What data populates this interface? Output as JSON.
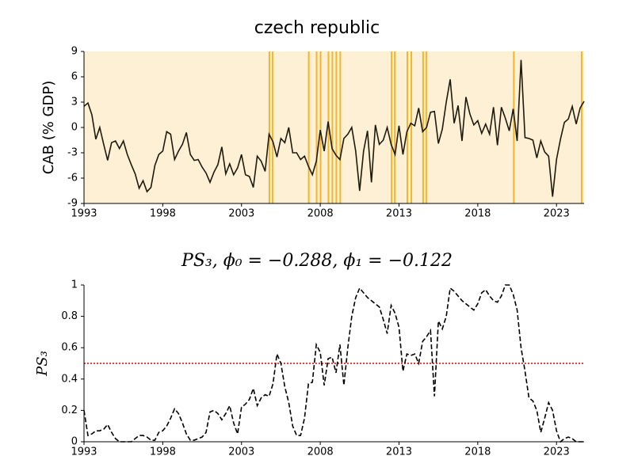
{
  "chart_data": [
    {
      "type": "line",
      "title": "czech republic",
      "ylabel": "CAB (% GDP)",
      "xlim": [
        1993,
        2024.75
      ],
      "xticks": [
        1993,
        1998,
        2003,
        2008,
        2013,
        2018,
        2023
      ],
      "ylim": [
        -9,
        9
      ],
      "yticks": [
        -9,
        -6,
        -3,
        0,
        3,
        6,
        9
      ],
      "background": "#fdf0d5",
      "vlines_color": "#f5b529",
      "vlines": [
        2004.77,
        2004.97,
        2007.27,
        2007.77,
        2008.02,
        2008.52,
        2008.77,
        2009.02,
        2009.27,
        2012.53,
        2012.73,
        2013.53,
        2013.78,
        2014.53,
        2014.73,
        2020.29,
        2024.6
      ],
      "x": [
        1993,
        1993.25,
        1993.5,
        1993.75,
        1994,
        1994.25,
        1994.5,
        1994.75,
        1995,
        1995.25,
        1995.5,
        1995.75,
        1996,
        1996.25,
        1996.5,
        1996.75,
        1997,
        1997.25,
        1997.5,
        1997.75,
        1998,
        1998.25,
        1998.5,
        1998.75,
        1999,
        1999.25,
        1999.5,
        1999.75,
        2000,
        2000.25,
        2000.5,
        2000.75,
        2001,
        2001.25,
        2001.5,
        2001.75,
        2002,
        2002.25,
        2002.5,
        2002.75,
        2003,
        2003.25,
        2003.5,
        2003.75,
        2004,
        2004.25,
        2004.5,
        2004.75,
        2005,
        2005.25,
        2005.5,
        2005.75,
        2006,
        2006.25,
        2006.5,
        2006.75,
        2007,
        2007.25,
        2007.5,
        2007.75,
        2008,
        2008.25,
        2008.5,
        2008.75,
        2009,
        2009.25,
        2009.5,
        2009.75,
        2010,
        2010.25,
        2010.5,
        2010.75,
        2011,
        2011.25,
        2011.5,
        2011.75,
        2012,
        2012.25,
        2012.5,
        2012.75,
        2013,
        2013.25,
        2013.5,
        2013.75,
        2014,
        2014.25,
        2014.5,
        2014.75,
        2015,
        2015.25,
        2015.5,
        2015.75,
        2016,
        2016.25,
        2016.5,
        2016.75,
        2017,
        2017.25,
        2017.5,
        2017.75,
        2018,
        2018.25,
        2018.5,
        2018.75,
        2019,
        2019.25,
        2019.5,
        2019.75,
        2020,
        2020.25,
        2020.5,
        2020.75,
        2021,
        2021.25,
        2021.5,
        2021.75,
        2022,
        2022.25,
        2022.5,
        2022.75,
        2023,
        2023.25,
        2023.5,
        2023.75,
        2024,
        2024.25,
        2024.5,
        2024.75
      ],
      "series": [
        {
          "color": "#1e1a0c",
          "dash": "solid",
          "values": [
            2.5,
            2.9,
            1.5,
            -1.4,
            0,
            -2,
            -3.9,
            -1.8,
            -1.6,
            -2.5,
            -1.6,
            -3.2,
            -4.4,
            -5.5,
            -7.2,
            -6.3,
            -7.6,
            -7.1,
            -4.5,
            -3.2,
            -2.8,
            -0.5,
            -0.8,
            -3.8,
            -2.8,
            -2,
            -0.6,
            -3.2,
            -3.9,
            -3.8,
            -4.7,
            -5.4,
            -6.5,
            -5.3,
            -4.4,
            -2.3,
            -5.5,
            -4.3,
            -5.6,
            -4.8,
            -3.2,
            -5.6,
            -5.8,
            -7.1,
            -3.4,
            -4,
            -5.2,
            -0.8,
            -1.7,
            -3.5,
            -1.3,
            -1.8,
            0,
            -3,
            -3,
            -3.8,
            -3.4,
            -4.6,
            -5.6,
            -4,
            -0.3,
            -2.8,
            0.7,
            -2.5,
            -3.3,
            -3.8,
            -1.3,
            -0.8,
            0,
            -2.8,
            -7.5,
            -2.8,
            -0.4,
            -6.5,
            0.3,
            -2,
            -1.5,
            0,
            -2,
            -3.2,
            0.2,
            -3.2,
            -0.5,
            0.5,
            0.2,
            2.3,
            -0.5,
            0,
            1.8,
            1.9,
            -1.9,
            -0.2,
            3,
            5.7,
            0.5,
            2.6,
            -1.6,
            3.6,
            1.6,
            0.3,
            0.8,
            -0.7,
            0.4,
            -0.8,
            2.4,
            -2.1,
            2.4,
            1.1,
            -0.4,
            2.2,
            -1.6,
            8,
            -1.2,
            -1.3,
            -1.5,
            -3.6,
            -1.6,
            -2.9,
            -3.4,
            -8.2,
            -3.8,
            -1.4,
            0.6,
            1,
            2.5,
            0.4,
            2.3,
            3.1
          ]
        }
      ]
    },
    {
      "type": "line",
      "title": "PS₃, ϕ₀ = −0.288, ϕ₁ = −0.122",
      "ylabel": "PS₃",
      "xlim": [
        1993,
        2024.75
      ],
      "xticks": [
        1993,
        1998,
        2003,
        2008,
        2013,
        2018,
        2023
      ],
      "ylim": [
        0,
        1
      ],
      "yticks": [
        0,
        0.2,
        0.4,
        0.6,
        0.8,
        1
      ],
      "threshold": 0.5,
      "threshold_color": "#e00000",
      "x": [
        1993,
        1993.25,
        1993.5,
        1993.75,
        1994,
        1994.25,
        1994.5,
        1994.75,
        1995,
        1995.25,
        1995.5,
        1995.75,
        1996,
        1996.25,
        1996.5,
        1996.75,
        1997,
        1997.25,
        1997.5,
        1997.75,
        1998,
        1998.25,
        1998.5,
        1998.75,
        1999,
        1999.25,
        1999.5,
        1999.75,
        2000,
        2000.25,
        2000.5,
        2000.75,
        2001,
        2001.25,
        2001.5,
        2001.75,
        2002,
        2002.25,
        2002.5,
        2002.75,
        2003,
        2003.25,
        2003.5,
        2003.75,
        2004,
        2004.25,
        2004.5,
        2004.75,
        2005,
        2005.25,
        2005.5,
        2005.75,
        2006,
        2006.25,
        2006.5,
        2006.75,
        2007,
        2007.25,
        2007.5,
        2007.75,
        2008,
        2008.25,
        2008.5,
        2008.75,
        2009,
        2009.25,
        2009.5,
        2009.75,
        2010,
        2010.25,
        2010.5,
        2010.75,
        2011,
        2011.25,
        2011.5,
        2011.75,
        2012,
        2012.25,
        2012.5,
        2012.75,
        2013,
        2013.25,
        2013.5,
        2013.75,
        2014,
        2014.25,
        2014.5,
        2014.75,
        2015,
        2015.25,
        2015.5,
        2015.75,
        2016,
        2016.25,
        2016.5,
        2016.75,
        2017,
        2017.25,
        2017.5,
        2017.75,
        2018,
        2018.25,
        2018.5,
        2018.75,
        2019,
        2019.25,
        2019.5,
        2019.75,
        2020,
        2020.25,
        2020.5,
        2020.75,
        2021,
        2021.25,
        2021.5,
        2021.75,
        2022,
        2022.25,
        2022.5,
        2022.75,
        2023,
        2023.25,
        2023.5,
        2023.75,
        2024,
        2024.25,
        2024.5,
        2024.75
      ],
      "series": [
        {
          "color": "#000000",
          "dash": "dashed",
          "values": [
            0.2,
            0.04,
            0.05,
            0.07,
            0.07,
            0.08,
            0.11,
            0.06,
            0.02,
            0,
            0,
            0,
            0,
            0.02,
            0.04,
            0.04,
            0.03,
            0.01,
            0.01,
            0.06,
            0.07,
            0.1,
            0.15,
            0.21,
            0.18,
            0.12,
            0.05,
            0.01,
            0.01,
            0.02,
            0.03,
            0.06,
            0.19,
            0.2,
            0.18,
            0.14,
            0.18,
            0.23,
            0.12,
            0.05,
            0.22,
            0.24,
            0.27,
            0.34,
            0.23,
            0.28,
            0.3,
            0.29,
            0.37,
            0.56,
            0.5,
            0.35,
            0.25,
            0.1,
            0.04,
            0.04,
            0.15,
            0.37,
            0.38,
            0.62,
            0.57,
            0.36,
            0.53,
            0.54,
            0.44,
            0.62,
            0.36,
            0.6,
            0.8,
            0.92,
            0.98,
            0.95,
            0.92,
            0.9,
            0.88,
            0.86,
            0.78,
            0.69,
            0.87,
            0.82,
            0.73,
            0.45,
            0.56,
            0.55,
            0.56,
            0.5,
            0.64,
            0.67,
            0.71,
            0.29,
            0.77,
            0.72,
            0.8,
            0.98,
            0.96,
            0.93,
            0.9,
            0.88,
            0.86,
            0.84,
            0.88,
            0.95,
            0.97,
            0.93,
            0.9,
            0.89,
            0.93,
            1,
            1,
            0.94,
            0.84,
            0.6,
            0.45,
            0.28,
            0.26,
            0.2,
            0.06,
            0.15,
            0.25,
            0.2,
            0.07,
            0,
            0.02,
            0.03,
            0.02,
            0,
            0,
            0
          ]
        }
      ]
    }
  ]
}
